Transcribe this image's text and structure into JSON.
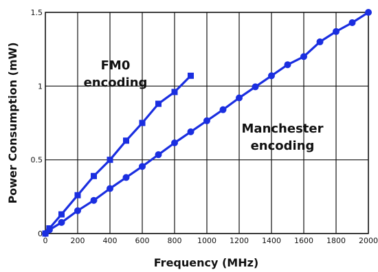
{
  "chart_data": {
    "type": "line",
    "title": "",
    "xlabel": "Frequency (MHz)",
    "ylabel": "Power Consumption (mW)",
    "xlim": [
      0,
      2000
    ],
    "ylim": [
      0,
      1.5
    ],
    "x_ticks": [
      "0",
      "200",
      "400",
      "600",
      "800",
      "1000",
      "1200",
      "1400",
      "1600",
      "1800",
      "2000"
    ],
    "y_ticks": [
      {
        "value": 0,
        "label": "0"
      },
      {
        "value": 0.5,
        "label": "0.5"
      },
      {
        "value": 1,
        "label": "1"
      },
      {
        "value": 1.5,
        "label": "1.5"
      }
    ],
    "grid": "vertical and horizontal major lines",
    "series": [
      {
        "name": "",
        "annotation": [
          "FM0",
          "encoding"
        ],
        "color": "#1a2ee0",
        "marker": "square",
        "x": [
          0,
          25,
          100,
          200,
          300,
          400,
          500,
          600,
          700,
          800,
          900
        ],
        "y": [
          0,
          0.035,
          0.13,
          0.26,
          0.39,
          0.5,
          0.63,
          0.75,
          0.88,
          0.96,
          1.07
        ]
      },
      {
        "name": "",
        "annotation": [
          "Manchester",
          "encoding"
        ],
        "color": "#1a2ee0",
        "marker": "circle",
        "x": [
          0,
          25,
          100,
          200,
          300,
          400,
          500,
          600,
          700,
          800,
          900,
          1000,
          1100,
          1200,
          1300,
          1400,
          1500,
          1600,
          1700,
          1800,
          1900,
          2000
        ],
        "y": [
          0,
          0.025,
          0.075,
          0.155,
          0.225,
          0.305,
          0.38,
          0.455,
          0.535,
          0.615,
          0.69,
          0.765,
          0.84,
          0.92,
          0.995,
          1.07,
          1.145,
          1.2,
          1.3,
          1.37,
          1.43,
          1.5
        ]
      }
    ]
  }
}
